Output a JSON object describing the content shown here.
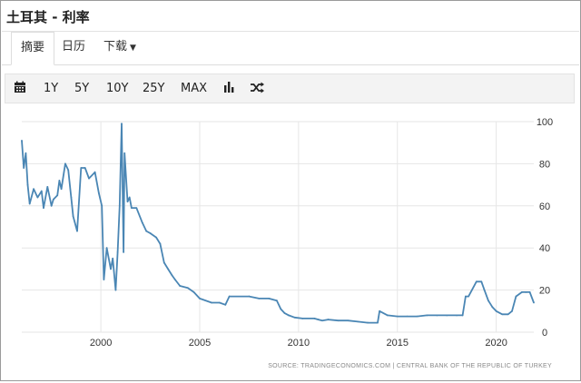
{
  "page": {
    "title": "土耳其 - 利率"
  },
  "tabs": [
    {
      "label": "摘要",
      "active": true
    },
    {
      "label": "日历",
      "active": false
    },
    {
      "label": "下载",
      "active": false,
      "has_dropdown": true
    }
  ],
  "toolbar": {
    "calendar_icon": "calendar-icon",
    "ranges": [
      "1Y",
      "5Y",
      "10Y",
      "25Y",
      "MAX"
    ],
    "chart_type_icon": "bar-chart-icon",
    "compare_icon": "shuffle-icon"
  },
  "colors": {
    "line": "#4a86b4",
    "grid": "#e6e6e6",
    "axis_text": "#333333",
    "source_text": "#888888"
  },
  "chart_data": {
    "type": "line",
    "title": "",
    "xlabel": "",
    "ylabel": "",
    "xlim": [
      1996.0,
      2021.9
    ],
    "ylim": [
      0,
      100
    ],
    "x_ticks": [
      2000,
      2005,
      2010,
      2015,
      2020
    ],
    "y_ticks": [
      0,
      20,
      40,
      60,
      80,
      100
    ],
    "grid": true,
    "source": "SOURCE: TRADINGECONOMICS.COM  |  CENTRAL BANK OF THE REPUBLIC OF TURKEY",
    "series": [
      {
        "x": [
          1996.0,
          1996.1,
          1996.2,
          1996.3,
          1996.4,
          1996.6,
          1996.8,
          1997.0,
          1997.1,
          1997.3,
          1997.5,
          1997.6,
          1997.8,
          1997.9,
          1998.0,
          1998.2,
          1998.35,
          1998.5,
          1998.6,
          1998.8,
          1999.0,
          1999.2,
          1999.4,
          1999.7,
          1999.9,
          2000.05,
          2000.15,
          2000.3,
          2000.5,
          2000.6,
          2000.75,
          2000.85,
          2000.95,
          2001.05,
          2001.15,
          2001.2,
          2001.35,
          2001.45,
          2001.55,
          2001.8,
          2002.1,
          2002.3,
          2002.5,
          2002.8,
          2003.0,
          2003.2,
          2003.4,
          2003.6,
          2003.75,
          2004.0,
          2004.4,
          2004.7,
          2005.0,
          2005.6,
          2006.0,
          2006.3,
          2006.5,
          2007.5,
          2008.0,
          2008.5,
          2008.9,
          2009.1,
          2009.3,
          2009.5,
          2009.8,
          2010.2,
          2010.8,
          2011.0,
          2011.2,
          2011.5,
          2012.0,
          2012.5,
          2013.0,
          2013.5,
          2014.0,
          2014.1,
          2014.5,
          2015.0,
          2015.5,
          2016.0,
          2016.5,
          2017.0,
          2017.5,
          2018.0,
          2018.3,
          2018.45,
          2018.6,
          2019.0,
          2019.25,
          2019.4,
          2019.6,
          2019.8,
          2020.0,
          2020.3,
          2020.6,
          2020.8,
          2021.0,
          2021.3,
          2021.5,
          2021.7,
          2021.9
        ],
        "y": [
          91,
          78,
          85,
          70,
          61,
          68,
          64,
          67,
          59,
          69,
          60,
          63,
          65,
          72,
          68,
          80,
          77,
          64,
          55,
          48,
          78,
          78,
          73,
          76,
          66,
          60,
          25,
          40,
          30,
          35,
          20,
          38,
          60,
          99,
          38,
          85,
          62,
          64,
          59,
          59,
          52,
          48,
          47,
          45,
          42,
          33,
          30,
          27,
          25,
          22,
          21,
          19,
          16,
          14,
          14,
          13,
          17,
          17,
          16,
          16,
          15,
          11,
          9,
          8,
          7,
          6.5,
          6.5,
          6,
          5.5,
          6,
          5.5,
          5.5,
          5,
          4.5,
          4.5,
          10,
          8,
          7.5,
          7.5,
          7.5,
          8,
          8,
          8,
          8,
          8,
          17,
          17,
          24,
          24,
          20,
          15,
          12,
          10,
          8.5,
          8.5,
          10,
          17,
          19,
          19,
          19,
          14
        ]
      }
    ]
  }
}
